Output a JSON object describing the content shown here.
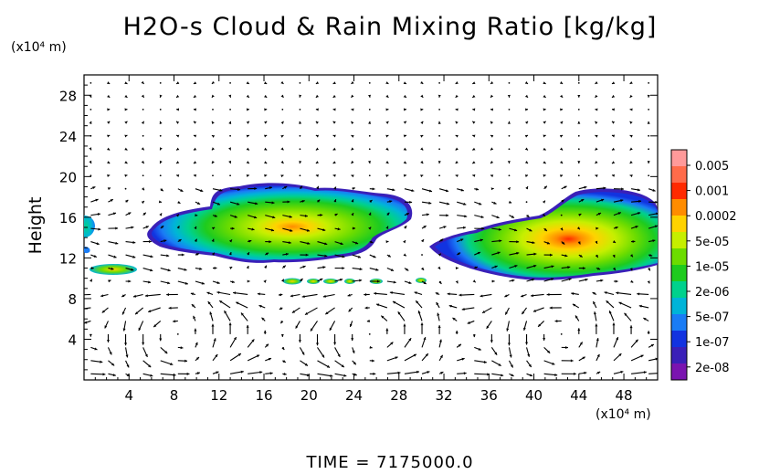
{
  "chart_data": {
    "type": "heatmap",
    "title": "H2O-s Cloud & Rain Mixing Ratio [kg/kg]",
    "ylabel": "Height",
    "y_unit_label": "(x10⁴ m)",
    "x_unit_label": "(x10⁴ m)",
    "xlim": [
      0,
      51
    ],
    "ylim": [
      0,
      30
    ],
    "x_ticks": [
      4,
      8,
      12,
      16,
      20,
      24,
      28,
      32,
      36,
      40,
      44,
      48
    ],
    "y_ticks": [
      4,
      8,
      12,
      16,
      20,
      24,
      28
    ],
    "colorbar": {
      "labels": [
        "0.005",
        "0.001",
        "0.0002",
        "5e-05",
        "1e-05",
        "2e-06",
        "5e-07",
        "1e-07",
        "2e-08"
      ],
      "colors": [
        "#ff9a9a",
        "#ff6b4a",
        "#ff2a00",
        "#ff8c00",
        "#ffd200",
        "#c6ef00",
        "#6cdc00",
        "#1ecb1e",
        "#00d18c",
        "#00b4d8",
        "#1a7cf5",
        "#1233e0",
        "#3a20b8",
        "#7a14b0"
      ]
    },
    "regions": [
      {
        "name": "cloud-west-edge",
        "x": [
          0,
          1.2
        ],
        "y": [
          12.5,
          16.2
        ],
        "peak": "2e-06"
      },
      {
        "name": "cloud-main-anvil",
        "x": [
          8.5,
          29.5
        ],
        "y": [
          11.8,
          19.5
        ],
        "peak": "0.0002"
      },
      {
        "name": "cloud-east-complex",
        "x": [
          30,
          51
        ],
        "y": [
          10.8,
          19.2
        ],
        "peak": "0.0002"
      },
      {
        "name": "small-cloud-left",
        "x": [
          0.8,
          4.6
        ],
        "y": [
          9.9,
          11.0
        ],
        "peak": "0.0002"
      },
      {
        "name": "small-cloud-row",
        "x": [
          17.5,
          30.5
        ],
        "y": [
          9.3,
          10.3
        ],
        "peak": "1e-05"
      }
    ]
  },
  "time_label": "TIME  =  7175000.0"
}
